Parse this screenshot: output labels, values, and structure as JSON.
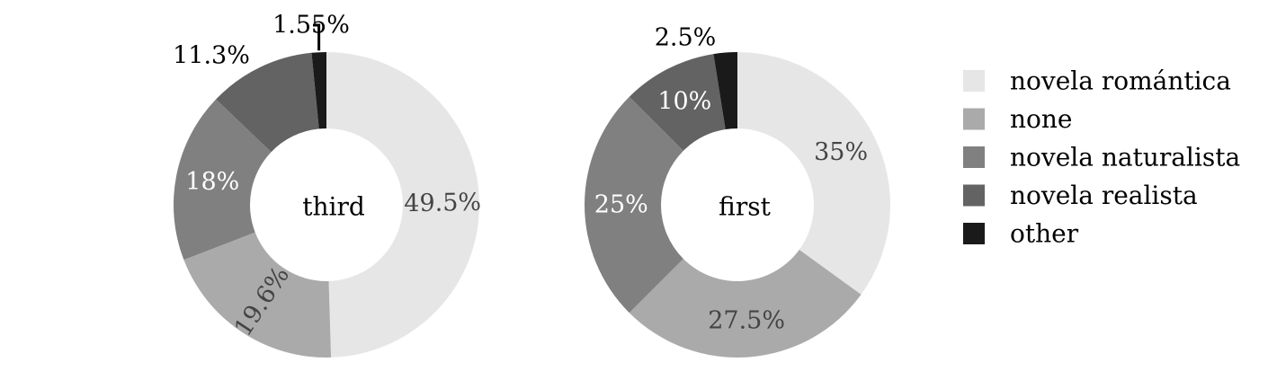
{
  "chart_data": {
    "type": "pie",
    "variant": "donut",
    "categories": [
      "novela romántica",
      "none",
      "novela naturalista",
      "novela realista",
      "other"
    ],
    "colors": [
      "#e6e6e6",
      "#aaaaaa",
      "#808080",
      "#636363",
      "#1a1a1a"
    ],
    "label_colors": [
      "#444444",
      "#444444",
      "#ffffff",
      "#ffffff",
      "#000000"
    ],
    "legend": {
      "position": "right",
      "entries": [
        "novela romántica",
        "none",
        "novela naturalista",
        "novela realista",
        "other"
      ]
    },
    "charts": [
      {
        "name": "third",
        "center_label": "third",
        "values": [
          49.5,
          19.6,
          18.0,
          11.3,
          1.55
        ],
        "labels": [
          "49.5%",
          "19.6%",
          "18%",
          "11.3%",
          "1.55%"
        ]
      },
      {
        "name": "first",
        "center_label": "first",
        "values": [
          35.0,
          27.5,
          25.0,
          10.0,
          2.5
        ],
        "labels": [
          "35%",
          "27.5%",
          "25%",
          "10%",
          "2.5%"
        ]
      }
    ]
  }
}
